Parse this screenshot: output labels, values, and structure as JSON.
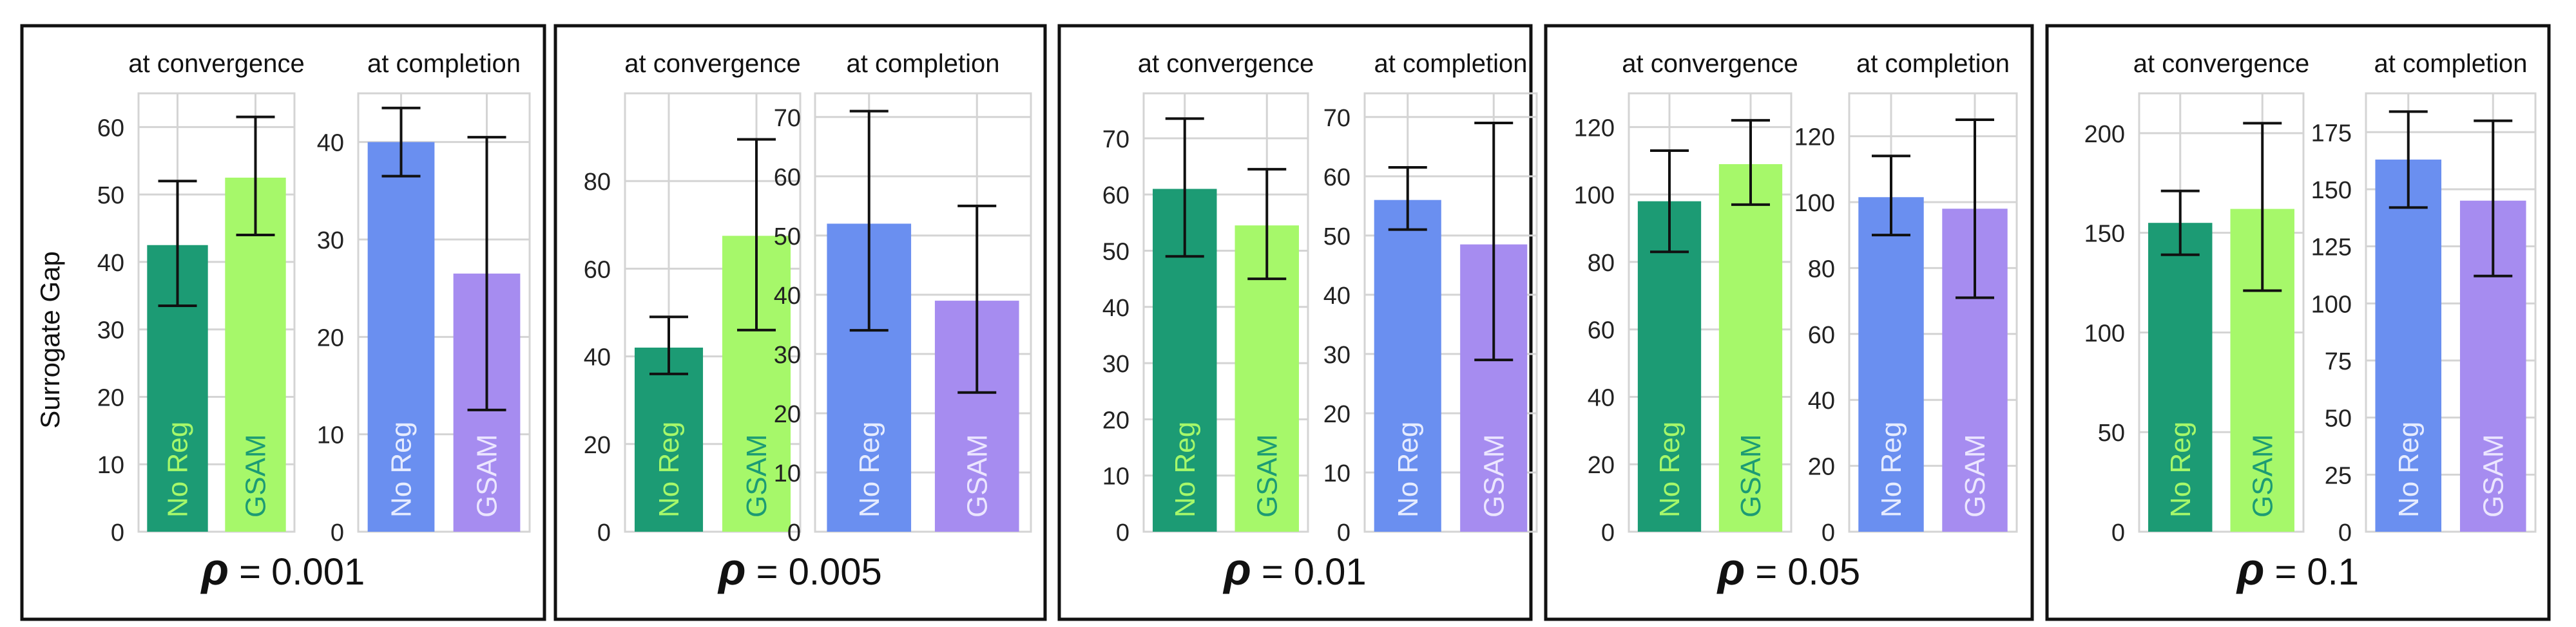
{
  "figure": {
    "ylabel": "Surrogate Gap",
    "rho_symbol": "ρ"
  },
  "colors": {
    "conv_noreg_bar": "#1c9b74",
    "conv_gsam_bar": "#a6f86a",
    "comp_noreg_bar": "#6a8ff0",
    "comp_gsam_bar": "#a68cf0",
    "conv_noreg_text": "#a6f86a",
    "conv_gsam_text": "#1c9b74",
    "comp_noreg_text": "#e6ecff",
    "comp_gsam_text": "#ece6ff",
    "grid": "#d4d4d4",
    "frame": "#111111"
  },
  "chart_data": [
    {
      "type": "bar",
      "rho": "= 0.001",
      "subcharts": [
        {
          "title": "at convergence",
          "categories": [
            "No Reg",
            "GSAM"
          ],
          "values": [
            42.5,
            52.5
          ],
          "err_low": [
            33.5,
            44
          ],
          "err_high": [
            52,
            61.5
          ],
          "ylim": [
            0,
            65
          ],
          "yticks": [
            0,
            10,
            20,
            30,
            40,
            50,
            60
          ]
        },
        {
          "title": "at completion",
          "categories": [
            "No Reg",
            "GSAM"
          ],
          "values": [
            40,
            26.5
          ],
          "err_low": [
            36.5,
            12.5
          ],
          "err_high": [
            43.5,
            40.5
          ],
          "ylim": [
            0,
            45
          ],
          "yticks": [
            0,
            10,
            20,
            30,
            40
          ]
        }
      ]
    },
    {
      "type": "bar",
      "rho": "= 0.005",
      "subcharts": [
        {
          "title": "at convergence",
          "categories": [
            "No Reg",
            "GSAM"
          ],
          "values": [
            42,
            67.5
          ],
          "err_low": [
            36,
            46
          ],
          "err_high": [
            49,
            89.5
          ],
          "ylim": [
            0,
            100
          ],
          "yticks": [
            0,
            20,
            40,
            60,
            80
          ]
        },
        {
          "title": "at completion",
          "categories": [
            "No Reg",
            "GSAM"
          ],
          "values": [
            52,
            39
          ],
          "err_low": [
            34,
            23.5
          ],
          "err_high": [
            71,
            55
          ],
          "ylim": [
            0,
            74
          ],
          "yticks": [
            0,
            10,
            20,
            30,
            40,
            50,
            60,
            70
          ]
        }
      ]
    },
    {
      "type": "bar",
      "rho": "= 0.01",
      "subcharts": [
        {
          "title": "at convergence",
          "categories": [
            "No Reg",
            "GSAM"
          ],
          "values": [
            61,
            54.5
          ],
          "err_low": [
            49,
            45
          ],
          "err_high": [
            73.5,
            64.5
          ],
          "ylim": [
            0,
            78
          ],
          "yticks": [
            0,
            10,
            20,
            30,
            40,
            50,
            60,
            70
          ]
        },
        {
          "title": "at completion",
          "categories": [
            "No Reg",
            "GSAM"
          ],
          "values": [
            56,
            48.5
          ],
          "err_low": [
            51,
            29
          ],
          "err_high": [
            61.5,
            69
          ],
          "ylim": [
            0,
            74
          ],
          "yticks": [
            0,
            10,
            20,
            30,
            40,
            50,
            60,
            70
          ]
        }
      ]
    },
    {
      "type": "bar",
      "rho": "= 0.05",
      "subcharts": [
        {
          "title": "at convergence",
          "categories": [
            "No Reg",
            "GSAM"
          ],
          "values": [
            98,
            109
          ],
          "err_low": [
            83,
            97
          ],
          "err_high": [
            113,
            122
          ],
          "ylim": [
            0,
            130
          ],
          "yticks": [
            0,
            20,
            40,
            60,
            80,
            100,
            120
          ]
        },
        {
          "title": "at completion",
          "categories": [
            "No Reg",
            "GSAM"
          ],
          "values": [
            101.5,
            98
          ],
          "err_low": [
            90,
            71
          ],
          "err_high": [
            114,
            125
          ],
          "ylim": [
            0,
            133
          ],
          "yticks": [
            0,
            20,
            40,
            60,
            80,
            100,
            120
          ]
        }
      ]
    },
    {
      "type": "bar",
      "rho": "= 0.1",
      "subcharts": [
        {
          "title": "at convergence",
          "categories": [
            "No Reg",
            "GSAM"
          ],
          "values": [
            155,
            162
          ],
          "err_low": [
            139,
            121
          ],
          "err_high": [
            171,
            205
          ],
          "ylim": [
            0,
            220
          ],
          "yticks": [
            0,
            50,
            100,
            150,
            200
          ]
        },
        {
          "title": "at completion",
          "categories": [
            "No Reg",
            "GSAM"
          ],
          "values": [
            163,
            145
          ],
          "err_low": [
            142,
            112
          ],
          "err_high": [
            184,
            180
          ],
          "ylim": [
            0,
            192
          ],
          "yticks": [
            0,
            25,
            50,
            75,
            100,
            125,
            150,
            175
          ]
        }
      ]
    }
  ]
}
